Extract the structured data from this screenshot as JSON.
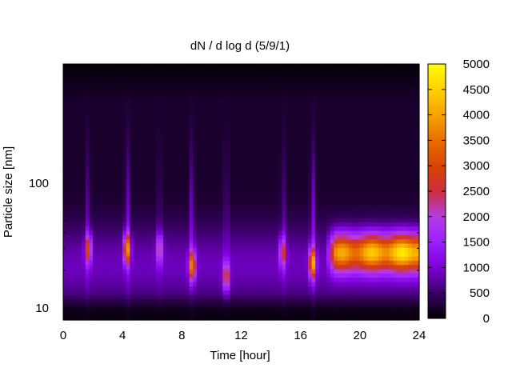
{
  "chart_data": {
    "type": "heatmap",
    "title": "dN / d log d (5/9/1)",
    "xlabel": "Time [hour]",
    "ylabel": "Particle size [nm]",
    "x_ticks": [
      0,
      4,
      8,
      12,
      16,
      20,
      24
    ],
    "x_minor_step": 1,
    "xlim": [
      0,
      24
    ],
    "y_scale": "log",
    "ylim": [
      8,
      900
    ],
    "y_tick_labels": [
      {
        "value": 10,
        "label": "10"
      },
      {
        "value": 100,
        "label": "100"
      }
    ],
    "colorbar": {
      "range": [
        0,
        5000
      ],
      "ticks": [
        0,
        500,
        1000,
        1500,
        2000,
        2500,
        3000,
        3500,
        4000,
        4500,
        5000
      ],
      "palette": [
        "#000000",
        "#3a0066",
        "#7d00d8",
        "#9b1fff",
        "#b43ce0",
        "#cc2f3f",
        "#d84400",
        "#e86e00",
        "#f5a300",
        "#ffd000",
        "#ffff00"
      ]
    },
    "features": [
      {
        "time": 1.7,
        "diameter_nm": 30,
        "peak": 2100
      },
      {
        "time": 4.3,
        "diameter_nm": 30,
        "peak": 3000
      },
      {
        "time": 6.5,
        "diameter_nm": 30,
        "peak": 1600
      },
      {
        "time": 8.7,
        "diameter_nm": 22,
        "peak": 2800
      },
      {
        "time": 11.0,
        "diameter_nm": 18,
        "peak": 2000
      },
      {
        "time": 14.8,
        "diameter_nm": 28,
        "peak": 1800
      },
      {
        "time": 16.8,
        "diameter_nm": 23,
        "peak": 3300
      },
      {
        "time_range": [
          18,
          24
        ],
        "diameter_nm": 28,
        "level_range": [
          2800,
          3800
        ]
      }
    ]
  }
}
